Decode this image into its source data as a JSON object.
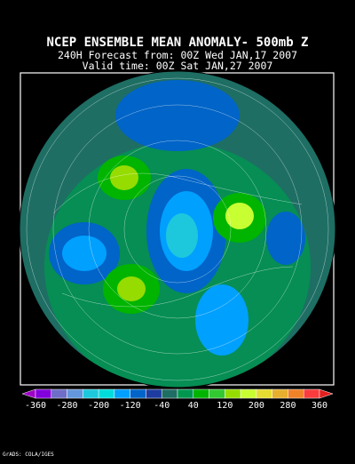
{
  "header": {
    "title": "NCEP ENSEMBLE MEAN ANOMALY- 500mb Z",
    "forecast": "240H Forecast from: 00Z Wed JAN,17 2007",
    "valid": "Valid time: 00Z Sat JAN,27 2007"
  },
  "colorbar": {
    "labels": [
      -360,
      -280,
      -200,
      -120,
      -40,
      40,
      120,
      200,
      280,
      360
    ],
    "colors": [
      "#a000c8",
      "#8200dc",
      "#6e6ec8",
      "#6496dc",
      "#1ec8dc",
      "#00dcdc",
      "#00a0ff",
      "#0064c8",
      "#1e3ca0",
      "#1e6e64",
      "#009650",
      "#00b400",
      "#32c832",
      "#96dc00",
      "#c8ff32",
      "#e6dc32",
      "#e6af2d",
      "#f08228",
      "#fa3c3c",
      "#e61e1e"
    ]
  },
  "credit": "GrADS: COLA/IGES"
}
